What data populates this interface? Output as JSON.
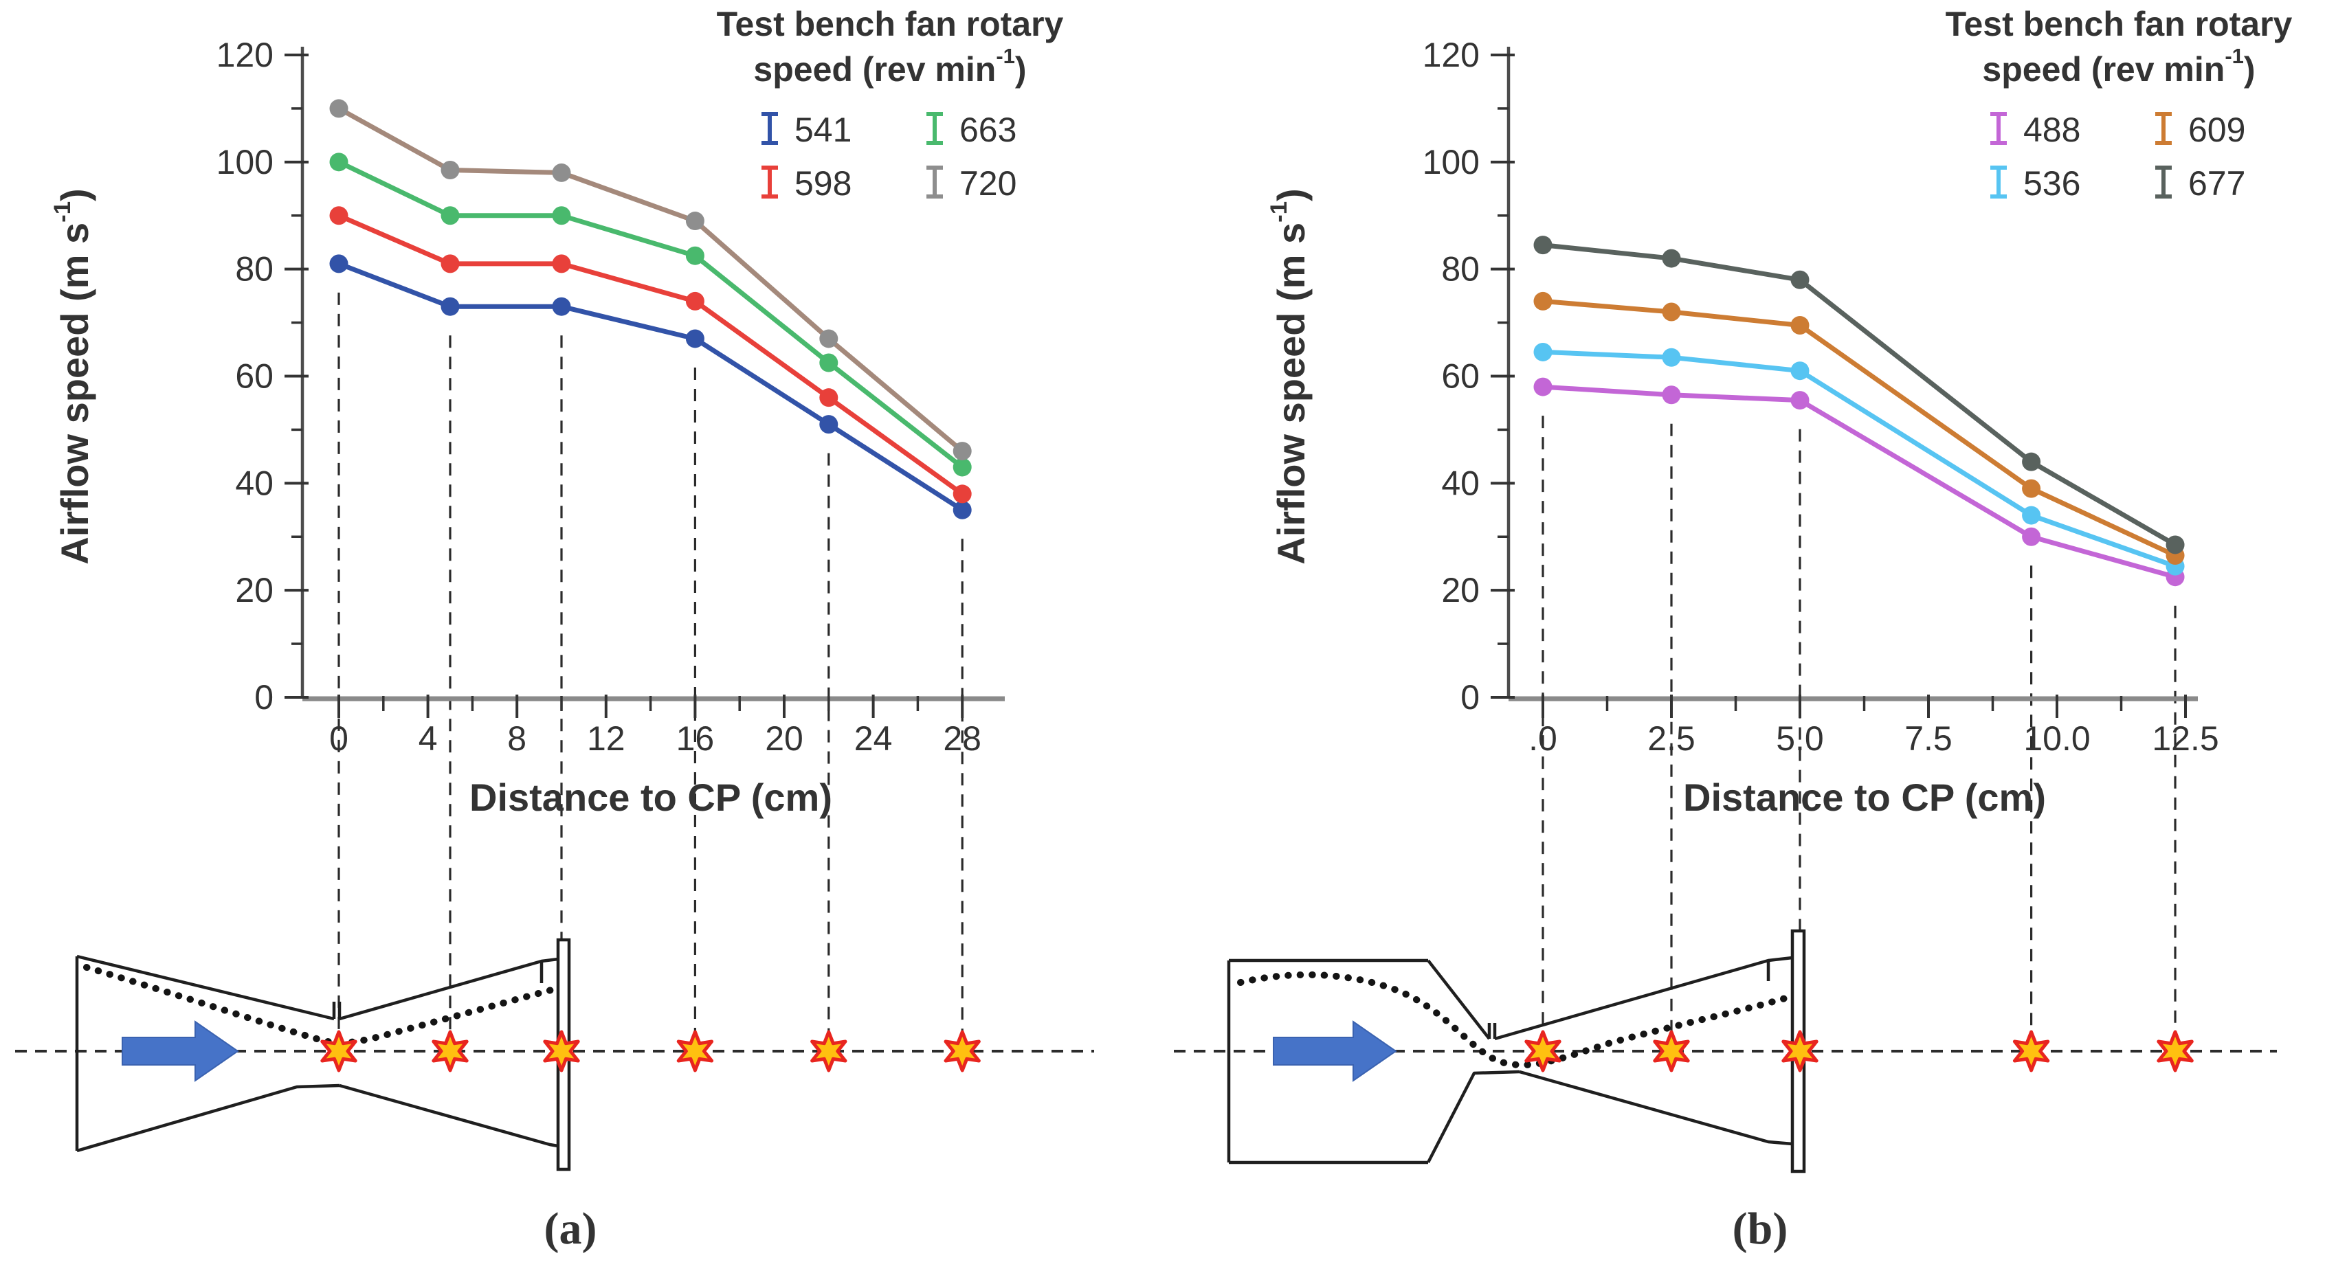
{
  "page": {
    "background": "#ffffff"
  },
  "figure": {
    "panels": [
      {
        "id": "a"
      },
      {
        "id": "b"
      }
    ]
  },
  "chart_data": [
    {
      "id": "a",
      "type": "line",
      "caption": "(a)",
      "legend_title_lines": [
        "Test bench fan rotary",
        "speed (rev min^{-1})"
      ],
      "xlabel": "Distance to CP (cm)",
      "ylabel": "Airflow speed (m s^{-1})",
      "ylim": [
        0,
        120
      ],
      "yticks": [
        0,
        20,
        40,
        60,
        80,
        100,
        120
      ],
      "xticks": [
        {
          "v": 0,
          "label": "0"
        },
        {
          "v": 4,
          "label": "4"
        },
        {
          "v": 8,
          "label": "8"
        },
        {
          "v": 12,
          "label": "12"
        },
        {
          "v": 16,
          "label": "16"
        },
        {
          "v": 20,
          "label": "20"
        },
        {
          "v": 24,
          "label": "24"
        },
        {
          "v": 28,
          "label": "28"
        }
      ],
      "x": [
        0,
        5,
        10,
        16,
        22,
        28
      ],
      "series": [
        {
          "name": "541",
          "color": "#3253a8",
          "values": [
            81,
            73,
            73,
            67,
            51,
            35
          ]
        },
        {
          "name": "598",
          "color": "#e8403a",
          "values": [
            90,
            81,
            81,
            74,
            56,
            38
          ]
        },
        {
          "name": "663",
          "color": "#49b96d",
          "values": [
            100,
            90,
            90,
            82.5,
            62.5,
            43
          ]
        },
        {
          "name": "720",
          "color": "#a4897b",
          "marker_color": "#8e8e8e",
          "values": [
            110,
            98.5,
            98,
            89,
            67,
            46
          ]
        }
      ],
      "legend_cols": [
        [
          "541",
          "598"
        ],
        [
          "663",
          "720"
        ]
      ],
      "measurement_x": [
        0,
        5,
        10,
        16,
        22,
        28
      ],
      "grid": false,
      "legend_position": "top-right",
      "schematic": {
        "type": "converging-diverging nozzle",
        "flow_direction": "right",
        "marker_symbol": "6-point-star",
        "marker_fill": "#ffc010",
        "marker_stroke": "#e8251f",
        "arrow_color": "#4673c8"
      }
    },
    {
      "id": "b",
      "type": "line",
      "caption": "(b)",
      "legend_title_lines": [
        "Test bench fan rotary",
        "speed (rev min^{-1})"
      ],
      "xlabel": "Distance to CP (cm)",
      "ylabel": "Airflow speed (m s^{-1})",
      "ylim": [
        0,
        120
      ],
      "yticks": [
        0,
        20,
        40,
        60,
        80,
        100,
        120
      ],
      "xticks": [
        {
          "v": 0,
          "label": ".0"
        },
        {
          "v": 2.5,
          "label": "2.5"
        },
        {
          "v": 5,
          "label": "5.0"
        },
        {
          "v": 7.5,
          "label": "7.5"
        },
        {
          "v": 10,
          "label": "10.0"
        },
        {
          "v": 12.5,
          "label": "12.5"
        }
      ],
      "x": [
        0,
        2.5,
        5,
        9.5,
        12.3
      ],
      "series": [
        {
          "name": "488",
          "color": "#c366d6",
          "values": [
            58,
            56.5,
            55.5,
            30,
            22.5
          ]
        },
        {
          "name": "536",
          "color": "#57c4f2",
          "values": [
            64.5,
            63.5,
            61,
            34,
            24.5
          ]
        },
        {
          "name": "609",
          "color": "#cd7c33",
          "values": [
            74,
            72,
            69.5,
            39,
            26.5
          ]
        },
        {
          "name": "677",
          "color": "#59625e",
          "values": [
            84.5,
            82,
            78,
            44,
            28.5
          ]
        }
      ],
      "legend_cols": [
        [
          "488",
          "536"
        ],
        [
          "609",
          "677"
        ]
      ],
      "measurement_x": [
        0,
        2.5,
        5,
        9.5,
        12.3
      ],
      "grid": false,
      "legend_position": "top-right",
      "schematic": {
        "type": "converging-diverging nozzle with straight inlet",
        "flow_direction": "right",
        "marker_symbol": "6-point-star",
        "marker_fill": "#ffc010",
        "marker_stroke": "#e8251f",
        "arrow_color": "#4673c8"
      }
    }
  ]
}
